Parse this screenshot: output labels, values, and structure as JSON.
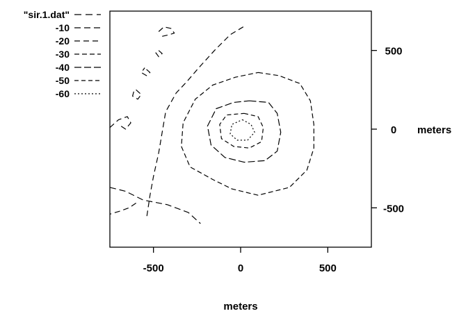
{
  "chart_data": {
    "type": "contour",
    "title": "",
    "xlabel": "meters",
    "ylabel": "meters",
    "xlim": [
      -750,
      750
    ],
    "ylim": [
      -750,
      750
    ],
    "x_ticks": [
      "-500",
      "0",
      "500"
    ],
    "y_ticks": [
      "500",
      "0",
      "-500"
    ],
    "x_tick_values": [
      -500,
      0,
      500
    ],
    "y_tick_values": [
      500,
      0,
      -500
    ],
    "legend_position": "top-left",
    "legend": [
      "\"sir.1.dat\"",
      "-10",
      "-20",
      "-30",
      "-40",
      "-50",
      "-60"
    ],
    "levels": [
      {
        "name": "-10",
        "dash": "9,5",
        "paths": [
          [
            [
              -750,
              -370
            ],
            [
              -660,
              -395
            ],
            [
              -560,
              -450
            ],
            [
              -420,
              -480
            ],
            [
              -300,
              -530
            ],
            [
              -230,
              -600
            ]
          ]
        ]
      },
      {
        "name": "-20",
        "dash": "8,5",
        "paths": [
          [
            [
              15,
              650
            ],
            [
              -60,
              600
            ],
            [
              -150,
              500
            ],
            [
              -240,
              390
            ],
            [
              -310,
              300
            ],
            [
              -370,
              230
            ],
            [
              -430,
              110
            ],
            [
              -450,
              -20
            ],
            [
              -470,
              -150
            ],
            [
              -500,
              -300
            ],
            [
              -520,
              -420
            ],
            [
              -540,
              -570
            ]
          ],
          [
            [
              -600,
              -470
            ],
            [
              -640,
              -500
            ],
            [
              -690,
              -520
            ],
            [
              -750,
              -540
            ]
          ],
          [
            [
              -750,
              10
            ],
            [
              -700,
              60
            ],
            [
              -650,
              80
            ],
            [
              -630,
              40
            ],
            [
              -660,
              0
            ],
            [
              -700,
              30
            ]
          ],
          [
            [
              -600,
              250
            ],
            [
              -570,
              220
            ],
            [
              -590,
              190
            ],
            [
              -620,
              210
            ],
            [
              -610,
              250
            ]
          ],
          [
            [
              -470,
              500
            ],
            [
              -450,
              480
            ],
            [
              -470,
              460
            ],
            [
              -490,
              490
            ]
          ],
          [
            [
              -470,
              620
            ],
            [
              -440,
              650
            ],
            [
              -400,
              640
            ],
            [
              -380,
              610
            ],
            [
              -410,
              600
            ],
            [
              -450,
              590
            ]
          ],
          [
            [
              -540,
              380
            ],
            [
              -520,
              360
            ],
            [
              -540,
              340
            ],
            [
              -570,
              360
            ],
            [
              -550,
              390
            ]
          ]
        ]
      },
      {
        "name": "-30",
        "dash": "7,4",
        "paths": [
          [
            [
              100,
              360
            ],
            [
              220,
              340
            ],
            [
              340,
              290
            ],
            [
              400,
              180
            ],
            [
              420,
              30
            ],
            [
              420,
              -120
            ],
            [
              380,
              -260
            ],
            [
              280,
              -370
            ],
            [
              100,
              -420
            ],
            [
              -50,
              -380
            ],
            [
              -160,
              -320
            ],
            [
              -290,
              -240
            ],
            [
              -340,
              -110
            ],
            [
              -330,
              40
            ],
            [
              -260,
              190
            ],
            [
              -160,
              280
            ],
            [
              -30,
              330
            ],
            [
              100,
              360
            ]
          ]
        ]
      },
      {
        "name": "-40",
        "dash": "10,4",
        "paths": [
          [
            [
              50,
              180
            ],
            [
              160,
              170
            ],
            [
              210,
              100
            ],
            [
              230,
              -20
            ],
            [
              210,
              -140
            ],
            [
              140,
              -200
            ],
            [
              20,
              -210
            ],
            [
              -90,
              -180
            ],
            [
              -170,
              -100
            ],
            [
              -190,
              20
            ],
            [
              -140,
              130
            ],
            [
              -40,
              170
            ],
            [
              50,
              180
            ]
          ]
        ]
      },
      {
        "name": "-50",
        "dash": "6,4",
        "paths": [
          [
            [
              20,
              100
            ],
            [
              100,
              80
            ],
            [
              130,
              10
            ],
            [
              120,
              -80
            ],
            [
              50,
              -120
            ],
            [
              -40,
              -110
            ],
            [
              -110,
              -60
            ],
            [
              -120,
              30
            ],
            [
              -80,
              90
            ],
            [
              20,
              100
            ]
          ]
        ]
      },
      {
        "name": "-60",
        "dash": "2,3",
        "paths": [
          [
            [
              10,
              60
            ],
            [
              60,
              30
            ],
            [
              80,
              -20
            ],
            [
              40,
              -70
            ],
            [
              -20,
              -70
            ],
            [
              -60,
              -30
            ],
            [
              -50,
              30
            ],
            [
              10,
              60
            ]
          ]
        ]
      }
    ]
  }
}
